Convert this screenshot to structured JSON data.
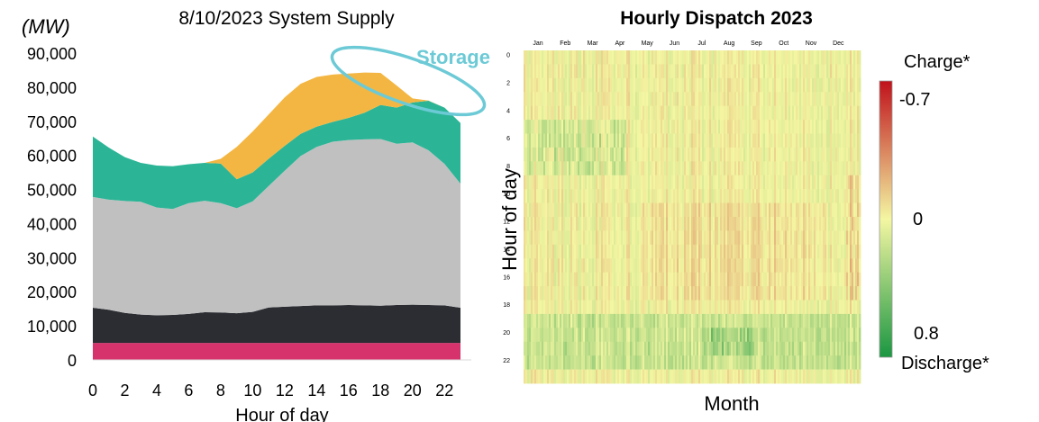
{
  "chart_data": [
    {
      "type": "area",
      "title": "8/10/2023 System Supply",
      "unit_label": "(MW)",
      "xlabel": "Hour of day",
      "ylabel": "",
      "x": [
        0,
        1,
        2,
        3,
        4,
        5,
        6,
        7,
        8,
        9,
        10,
        11,
        12,
        13,
        14,
        15,
        16,
        17,
        18,
        19,
        20,
        21,
        22,
        23
      ],
      "x_ticks": [
        0,
        2,
        4,
        6,
        8,
        10,
        12,
        14,
        16,
        18,
        20,
        22
      ],
      "ylim": [
        0,
        90000
      ],
      "y_ticks": [
        0,
        10000,
        20000,
        30000,
        40000,
        50000,
        60000,
        70000,
        80000,
        90000
      ],
      "y_tick_labels": [
        "0",
        "10,000",
        "20,000",
        "30,000",
        "40,000",
        "50,000",
        "60,000",
        "70,000",
        "80,000",
        "90,000"
      ],
      "grid": false,
      "annotation": "Storage",
      "colors": [
        "#d6336c",
        "#2b2d33",
        "#c0c0c0",
        "#2bb596",
        "#f4b642"
      ],
      "outline_color": "#6ccad6",
      "series": [
        {
          "values": [
            5000,
            5000,
            5000,
            5000,
            5000,
            5000,
            5000,
            5000,
            5000,
            5000,
            5000,
            5000,
            5000,
            5000,
            5000,
            5000,
            5000,
            5000,
            5000,
            5000,
            5000,
            5000,
            5000,
            5000
          ]
        },
        {
          "values": [
            15300,
            14700,
            13800,
            13300,
            13100,
            13200,
            13500,
            14000,
            13900,
            13700,
            14100,
            15400,
            15600,
            15800,
            16000,
            16000,
            16100,
            16000,
            15900,
            16100,
            16200,
            16100,
            16000,
            15300
          ]
        },
        {
          "values": [
            47800,
            47000,
            46600,
            46400,
            44700,
            44300,
            46000,
            46700,
            46000,
            44500,
            46500,
            51000,
            55500,
            59800,
            62500,
            64000,
            64500,
            64700,
            64800,
            63400,
            63800,
            61500,
            57500,
            51700
          ]
        },
        {
          "values": [
            65500,
            62300,
            59500,
            57800,
            57000,
            56800,
            57400,
            57800,
            57600,
            53000,
            55000,
            59000,
            62800,
            66300,
            68400,
            69800,
            71000,
            72500,
            74800,
            74000,
            75500,
            76000,
            74000,
            69500
          ]
        },
        {
          "values": [
            65500,
            62300,
            59500,
            57800,
            57000,
            56800,
            57400,
            57800,
            59000,
            62500,
            67000,
            72000,
            77000,
            81000,
            83000,
            83700,
            84000,
            84300,
            84200,
            80500,
            76700,
            76100,
            74000,
            69500
          ]
        }
      ]
    },
    {
      "type": "heatmap",
      "title": "Hourly Dispatch 2023",
      "xlabel": "Month",
      "ylabel": "Hour of day",
      "months": [
        "Jan",
        "Feb",
        "Mar",
        "Apr",
        "May",
        "Jun",
        "Jul",
        "Aug",
        "Sep",
        "Oct",
        "Nov",
        "Dec"
      ],
      "hour_ticks": [
        0,
        2,
        4,
        6,
        8,
        10,
        12,
        14,
        16,
        18,
        20,
        22
      ],
      "colorbar": {
        "min": -0.7,
        "max": 0.8,
        "labels": [
          "-0.7",
          "0",
          "0.8"
        ],
        "top_caption": "Charge*",
        "bottom_caption": "Discharge*"
      },
      "colors": [
        "#c0121b",
        "#f4f6a2",
        "#1a9641"
      ]
    }
  ]
}
